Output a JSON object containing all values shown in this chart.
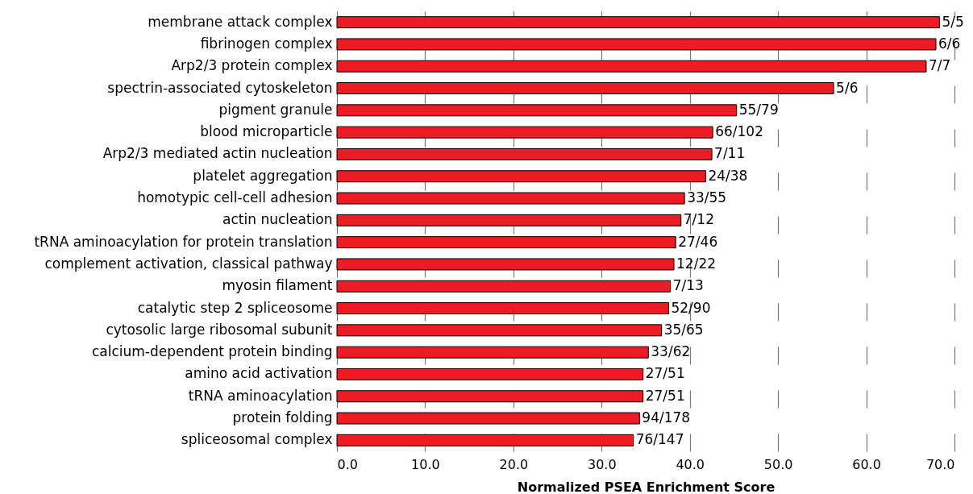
{
  "chart_data": {
    "type": "bar",
    "orientation": "horizontal",
    "xlabel": "Normalized PSEA Enrichment Score",
    "categories": [
      "membrane attack complex",
      "fibrinogen complex",
      "Arp2/3 protein complex",
      "spectrin-associated cytoskeleton",
      "pigment granule",
      "blood microparticle",
      "Arp2/3 mediated actin nucleation",
      "platelet aggregation",
      "homotypic cell-cell adhesion",
      "actin nucleation",
      "tRNA aminoacylation for protein translation",
      "complement activation, classical pathway",
      "myosin filament",
      "catalytic step 2 spliceosome",
      "cytosolic large ribosomal subunit",
      "calcium-dependent protein binding",
      "amino acid activation",
      "tRNA aminoacylation",
      "protein folding",
      "spliceosomal complex"
    ],
    "values": [
      68.3,
      67.9,
      66.8,
      56.3,
      45.3,
      42.6,
      42.5,
      41.8,
      39.4,
      39.0,
      38.4,
      38.2,
      37.8,
      37.6,
      36.8,
      35.3,
      34.7,
      34.7,
      34.3,
      33.6
    ],
    "annotations": [
      {
        "text": "5/5",
        "x": 68.3,
        "y": "membrane attack complex"
      },
      {
        "text": "6/6",
        "x": 67.9,
        "y": "fibrinogen complex"
      },
      {
        "text": "7/7",
        "x": 66.8,
        "y": "Arp2/3 protein complex"
      },
      {
        "text": "5/6",
        "x": 56.3,
        "y": "spectrin-associated cytoskeleton"
      },
      {
        "text": "55/79",
        "x": 45.3,
        "y": "pigment granule"
      },
      {
        "text": "66/102",
        "x": 42.6,
        "y": "blood microparticle"
      },
      {
        "text": "7/11",
        "x": 42.5,
        "y": "Arp2/3 mediated actin nucleation"
      },
      {
        "text": "24/38",
        "x": 41.8,
        "y": "platelet aggregation"
      },
      {
        "text": "33/55",
        "x": 39.4,
        "y": "homotypic cell-cell adhesion"
      },
      {
        "text": "7/12",
        "x": 39.0,
        "y": "actin nucleation"
      },
      {
        "text": "27/46",
        "x": 38.4,
        "y": "tRNA aminoacylation for protein translation"
      },
      {
        "text": "12/22",
        "x": 38.2,
        "y": "complement activation, classical pathway"
      },
      {
        "text": "7/13",
        "x": 37.8,
        "y": "myosin filament"
      },
      {
        "text": "52/90",
        "x": 37.6,
        "y": "catalytic step 2 spliceosome"
      },
      {
        "text": "35/65",
        "x": 36.8,
        "y": "cytosolic large ribosomal subunit"
      },
      {
        "text": "33/62",
        "x": 35.3,
        "y": "calcium-dependent protein binding"
      },
      {
        "text": "27/51",
        "x": 34.7,
        "y": "amino acid activation"
      },
      {
        "text": "27/51",
        "x": 34.7,
        "y": "tRNA aminoacylation"
      },
      {
        "text": "94/178",
        "x": 34.3,
        "y": "protein folding"
      },
      {
        "text": "76/147",
        "x": 33.6,
        "y": "spliceosomal complex"
      }
    ],
    "color": "#ed1c24",
    "xlim": [
      0,
      70
    ],
    "xticks": [
      {
        "value": 0,
        "label": "0.0"
      },
      {
        "value": 10,
        "label": "10.0"
      },
      {
        "value": 20,
        "label": "20.0"
      },
      {
        "value": 30,
        "label": "30.0"
      },
      {
        "value": 40,
        "label": "40.0"
      },
      {
        "value": 50,
        "label": "50.0"
      },
      {
        "value": 60,
        "label": "60.0"
      },
      {
        "value": 70,
        "label": "70.0"
      }
    ],
    "grid": "x"
  }
}
